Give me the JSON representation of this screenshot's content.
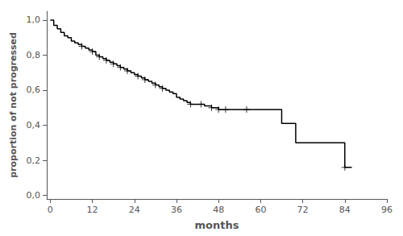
{
  "chart_data": {
    "type": "line",
    "xlabel": "months",
    "ylabel": "proportion of not progressed",
    "xlim": [
      -1,
      96
    ],
    "ylim": [
      -0.02,
      1.05
    ],
    "xticks": [
      0,
      12,
      24,
      36,
      48,
      60,
      72,
      84,
      96
    ],
    "yticks": [
      {
        "value": 0.0,
        "label": "0,0"
      },
      {
        "value": 0.2,
        "label": "0,2"
      },
      {
        "value": 0.4,
        "label": "0,4"
      },
      {
        "value": 0.6,
        "label": "0,6"
      },
      {
        "value": 0.8,
        "label": "0,8"
      },
      {
        "value": 1.0,
        "label": "1,0"
      }
    ],
    "grid": false,
    "series": [
      {
        "type": "step",
        "color": "#000000",
        "x": [
          0,
          1,
          2,
          3,
          4,
          5,
          6,
          7,
          8,
          9,
          10,
          11,
          12,
          13,
          14,
          15,
          16,
          17,
          18,
          19,
          20,
          21,
          22,
          23,
          24,
          25,
          26,
          27,
          28,
          29,
          30,
          31,
          32,
          33,
          34,
          35,
          36,
          37,
          38,
          39,
          40,
          41,
          42,
          43,
          44,
          46,
          48,
          50,
          52,
          54,
          66,
          70,
          84,
          86
        ],
        "values": [
          1.0,
          0.97,
          0.95,
          0.93,
          0.91,
          0.9,
          0.88,
          0.87,
          0.86,
          0.85,
          0.84,
          0.83,
          0.82,
          0.8,
          0.79,
          0.78,
          0.77,
          0.76,
          0.75,
          0.74,
          0.73,
          0.72,
          0.71,
          0.7,
          0.69,
          0.68,
          0.67,
          0.66,
          0.65,
          0.64,
          0.63,
          0.62,
          0.61,
          0.6,
          0.59,
          0.58,
          0.56,
          0.55,
          0.54,
          0.53,
          0.52,
          0.52,
          0.52,
          0.52,
          0.51,
          0.5,
          0.49,
          0.49,
          0.49,
          0.49,
          0.41,
          0.3,
          0.16,
          0.16
        ]
      },
      {
        "type": "scatter",
        "marker": "plus",
        "color": "#000000",
        "x": [
          9,
          12,
          14,
          16,
          18,
          20,
          22,
          25,
          27,
          30,
          32,
          40,
          43,
          46,
          48,
          50,
          56,
          84
        ],
        "values": [
          0.85,
          0.82,
          0.79,
          0.77,
          0.75,
          0.73,
          0.71,
          0.68,
          0.66,
          0.63,
          0.61,
          0.52,
          0.52,
          0.5,
          0.49,
          0.49,
          0.49,
          0.16
        ]
      }
    ]
  }
}
